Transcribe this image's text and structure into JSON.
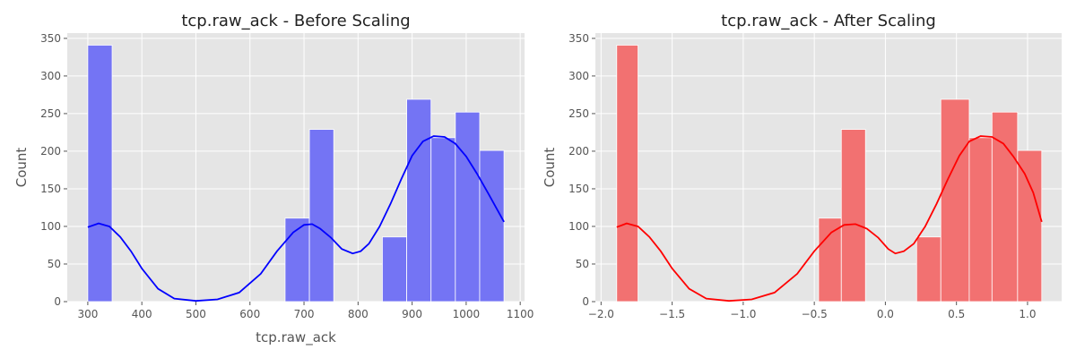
{
  "chart_data": [
    {
      "type": "bar",
      "title": "tcp.raw_ack - Before Scaling",
      "xlabel": "tcp.raw_ack",
      "ylabel": "Count",
      "xlim": [
        262,
        1108
      ],
      "ylim": [
        0,
        357
      ],
      "xticks": [
        300,
        400,
        500,
        600,
        700,
        800,
        900,
        1000,
        1100
      ],
      "yticks": [
        0,
        50,
        100,
        150,
        200,
        250,
        300,
        350
      ],
      "bar_color": "#7474f4",
      "kde_color": "#0000ff",
      "background": "#e5e5e5",
      "grid": true,
      "bins": [
        {
          "x0": 300,
          "x1": 345,
          "count": 341
        },
        {
          "x0": 665,
          "x1": 710,
          "count": 111
        },
        {
          "x0": 710,
          "x1": 755,
          "count": 229
        },
        {
          "x0": 845,
          "x1": 890,
          "count": 86
        },
        {
          "x0": 890,
          "x1": 935,
          "count": 269
        },
        {
          "x0": 935,
          "x1": 980,
          "count": 218
        },
        {
          "x0": 980,
          "x1": 1025,
          "count": 252
        },
        {
          "x0": 1025,
          "x1": 1070,
          "count": 201
        }
      ],
      "kde": {
        "x": [
          300,
          320,
          340,
          360,
          380,
          400,
          430,
          460,
          500,
          540,
          580,
          620,
          650,
          680,
          700,
          715,
          730,
          750,
          770,
          790,
          805,
          820,
          840,
          860,
          880,
          900,
          920,
          940,
          960,
          980,
          1000,
          1020,
          1040,
          1070
        ],
        "y": [
          99,
          104,
          100,
          86,
          67,
          44,
          17,
          4,
          1,
          3,
          12,
          37,
          67,
          92,
          102,
          103,
          97,
          85,
          70,
          64,
          67,
          77,
          100,
          130,
          163,
          194,
          213,
          220,
          219,
          210,
          193,
          170,
          145,
          106
        ]
      }
    },
    {
      "type": "bar",
      "title": "tcp.raw_ack - After Scaling",
      "xlabel": "",
      "ylabel": "Count",
      "xlim": [
        -2.04,
        1.24
      ],
      "ylim": [
        0,
        357
      ],
      "xticks": [
        -2.0,
        -1.5,
        -1.0,
        -0.5,
        0.0,
        0.5,
        1.0
      ],
      "xtick_labels": [
        "−2.0",
        "−1.5",
        "−1.0",
        "−0.5",
        "0.0",
        "0.5",
        "1.0"
      ],
      "yticks": [
        0,
        50,
        100,
        150,
        200,
        250,
        300,
        350
      ],
      "bar_color": "#f27171",
      "kde_color": "#ff0000",
      "background": "#e5e5e5",
      "grid": true,
      "bins": [
        {
          "x0": -1.89,
          "x1": -1.74,
          "count": 341
        },
        {
          "x0": -0.47,
          "x1": -0.31,
          "count": 111
        },
        {
          "x0": -0.31,
          "x1": -0.14,
          "count": 229
        },
        {
          "x0": 0.22,
          "x1": 0.39,
          "count": 86
        },
        {
          "x0": 0.39,
          "x1": 0.59,
          "count": 269
        },
        {
          "x0": 0.59,
          "x1": 0.75,
          "count": 218
        },
        {
          "x0": 0.75,
          "x1": 0.93,
          "count": 252
        },
        {
          "x0": 0.93,
          "x1": 1.1,
          "count": 201
        }
      ],
      "kde": {
        "x": [
          -1.89,
          -1.82,
          -1.74,
          -1.66,
          -1.58,
          -1.5,
          -1.38,
          -1.26,
          -1.1,
          -0.94,
          -0.78,
          -0.62,
          -0.5,
          -0.38,
          -0.29,
          -0.21,
          -0.13,
          -0.05,
          0.02,
          0.07,
          0.13,
          0.2,
          0.28,
          0.36,
          0.44,
          0.52,
          0.59,
          0.67,
          0.75,
          0.83,
          0.9,
          0.98,
          1.04,
          1.1
        ],
        "y": [
          99,
          104,
          100,
          86,
          67,
          44,
          17,
          4,
          1,
          3,
          12,
          37,
          67,
          92,
          102,
          103,
          97,
          85,
          70,
          64,
          67,
          77,
          100,
          130,
          163,
          194,
          213,
          220,
          219,
          210,
          193,
          170,
          145,
          106
        ]
      }
    }
  ]
}
